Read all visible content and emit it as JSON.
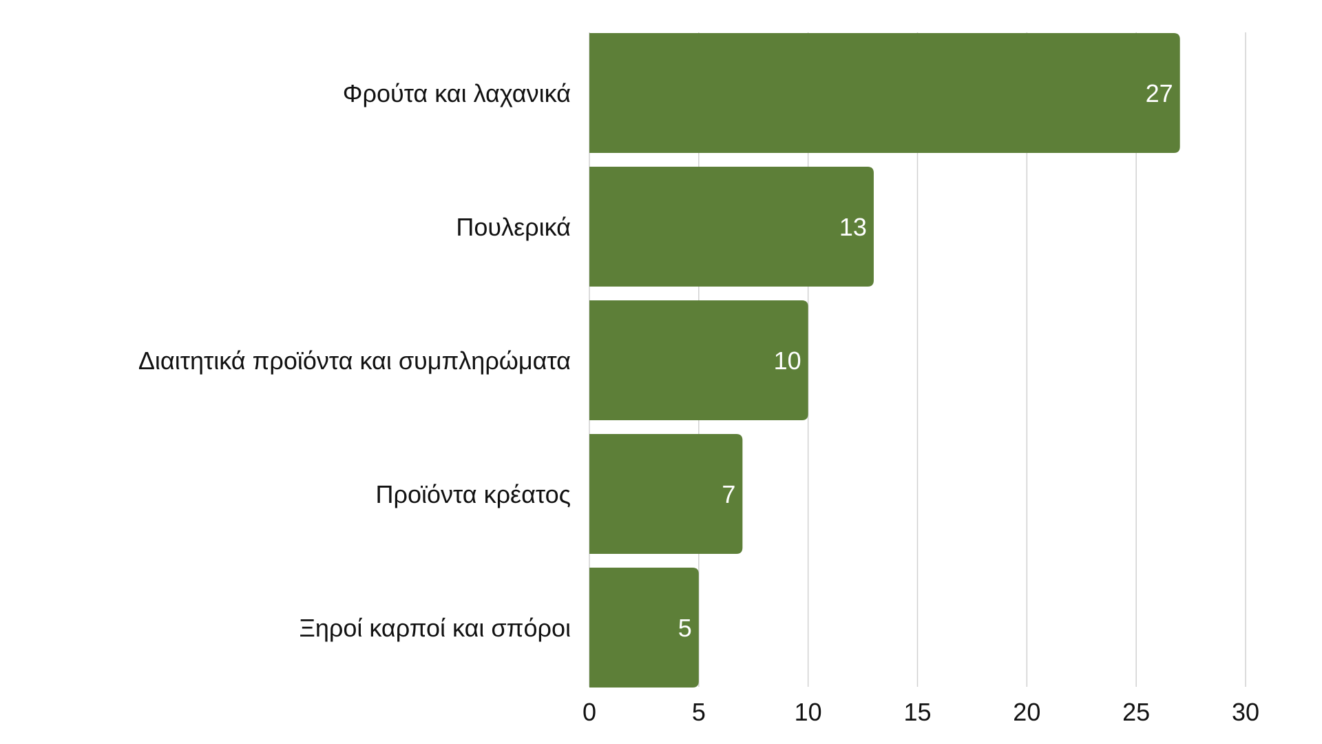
{
  "chart_data": {
    "type": "bar",
    "orientation": "horizontal",
    "categories": [
      "Φρούτα και λαχανικά",
      "Πουλερικά",
      "Διαιτητικά προϊόντα και συμπληρώματα",
      "Προϊόντα κρέατος",
      "Ξηροί καρποί και σπόροι"
    ],
    "values": [
      27,
      13,
      10,
      7,
      5
    ],
    "xlim": [
      0,
      30
    ],
    "xticks": [
      0,
      5,
      10,
      15,
      20,
      25,
      30
    ],
    "grid": true,
    "legend": "none",
    "bar_color": "#5d7f38",
    "data_label_color": "#ffffff"
  }
}
